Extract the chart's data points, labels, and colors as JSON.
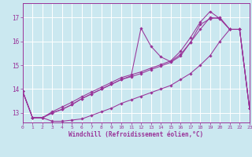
{
  "background_color": "#cbe8f0",
  "grid_color": "#ffffff",
  "line_color": "#993399",
  "xlabel": "Windchill (Refroidissement éolien,°C)",
  "xlim": [
    0,
    23
  ],
  "ylim": [
    12.6,
    17.6
  ],
  "yticks": [
    13,
    14,
    15,
    16,
    17
  ],
  "xticks": [
    0,
    1,
    2,
    3,
    4,
    5,
    6,
    7,
    8,
    9,
    10,
    11,
    12,
    13,
    14,
    15,
    16,
    17,
    18,
    19,
    20,
    21,
    22,
    23
  ],
  "curves_x": [
    0,
    1,
    2,
    3,
    4,
    5,
    6,
    7,
    8,
    9,
    10,
    11,
    12,
    13,
    14,
    15,
    16,
    17,
    18,
    19,
    20,
    21,
    22,
    23
  ],
  "curve1": [
    13.9,
    12.8,
    12.8,
    12.65,
    12.65,
    12.7,
    12.75,
    12.9,
    13.05,
    13.2,
    13.4,
    13.55,
    13.7,
    13.85,
    14.0,
    14.15,
    14.4,
    14.65,
    15.0,
    15.4,
    16.0,
    16.5,
    16.5,
    13.2
  ],
  "curve2": [
    13.9,
    12.8,
    12.8,
    13.0,
    13.15,
    13.35,
    13.6,
    13.8,
    14.0,
    14.2,
    14.4,
    14.55,
    16.55,
    15.8,
    15.35,
    15.15,
    15.45,
    15.95,
    16.5,
    17.0,
    16.95,
    16.5,
    16.5,
    13.2
  ],
  "curve3": [
    13.9,
    12.8,
    12.8,
    13.05,
    13.25,
    13.45,
    13.68,
    13.88,
    14.08,
    14.28,
    14.48,
    14.6,
    14.72,
    14.88,
    15.02,
    15.18,
    15.58,
    16.15,
    16.8,
    17.25,
    16.95,
    16.5,
    16.5,
    13.2
  ],
  "curve4": [
    13.9,
    12.8,
    12.8,
    13.0,
    13.15,
    13.35,
    13.6,
    13.8,
    14.0,
    14.2,
    14.4,
    14.52,
    14.65,
    14.82,
    14.96,
    15.12,
    15.38,
    15.95,
    16.7,
    16.95,
    17.0,
    16.5,
    16.5,
    13.2
  ]
}
